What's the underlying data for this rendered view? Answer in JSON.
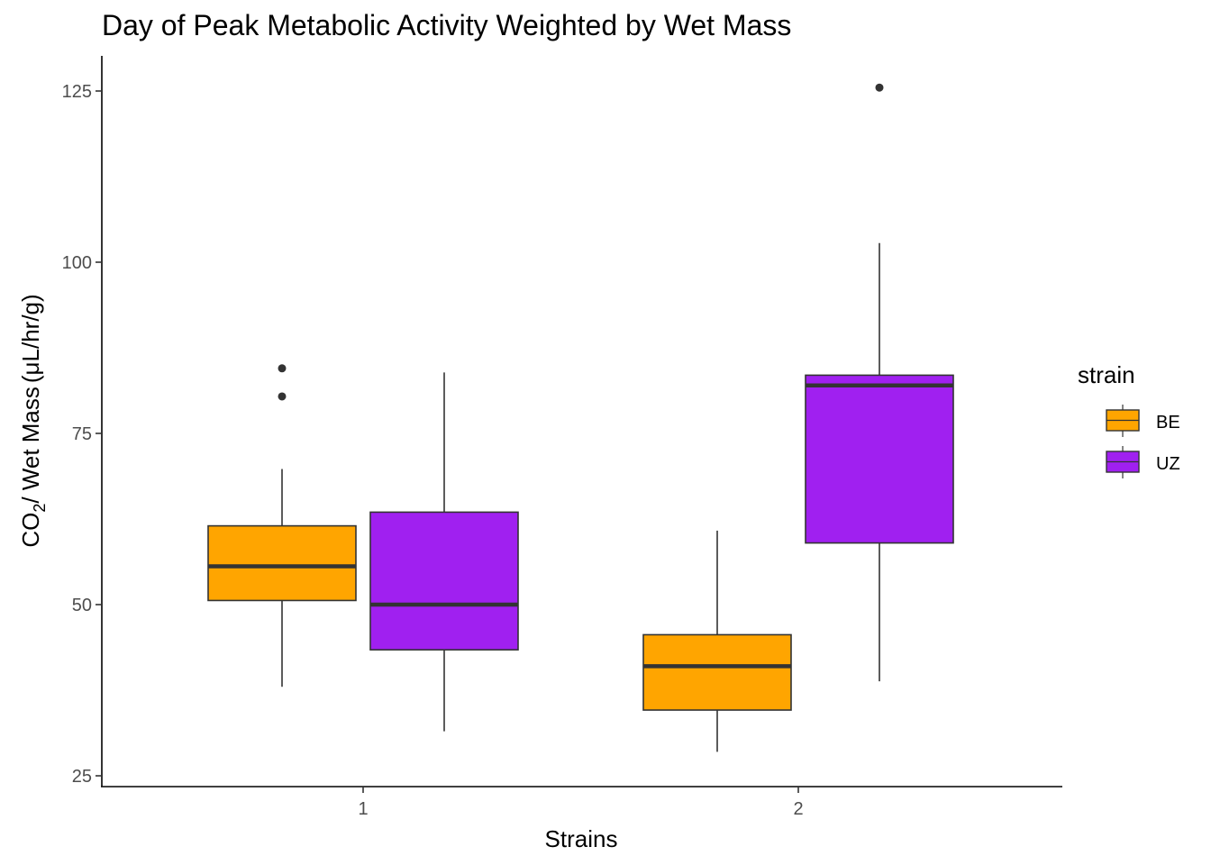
{
  "chart_data": {
    "type": "boxplot",
    "title": "Day of Peak Metabolic Activity Weighted by Wet Mass",
    "xlabel": "Strains",
    "ylabel": {
      "prefix": "CO",
      "subscript": "2",
      "suffix": "/ Wet Mass",
      "units": "(μL/hr/g)"
    },
    "categories": [
      "1",
      "2"
    ],
    "ylim": [
      24,
      130
    ],
    "yticks": [
      25,
      50,
      75,
      100,
      125
    ],
    "grid": false,
    "legend": {
      "title": "strain",
      "position": "right"
    },
    "series": [
      {
        "name": "BE",
        "color": "#FFA500",
        "boxes": [
          {
            "category": "1",
            "whisker_low": 38,
            "q1": 50.6,
            "median": 55.6,
            "q3": 61.5,
            "whisker_high": 69.8,
            "outliers": [
              80.4,
              84.5
            ]
          },
          {
            "category": "2",
            "whisker_low": 28.5,
            "q1": 34.6,
            "median": 41,
            "q3": 45.6,
            "whisker_high": 60.8,
            "outliers": []
          }
        ]
      },
      {
        "name": "UZ",
        "color": "#A020F0",
        "boxes": [
          {
            "category": "1",
            "whisker_low": 31.5,
            "q1": 43.4,
            "median": 50,
            "q3": 63.5,
            "whisker_high": 83.9,
            "outliers": []
          },
          {
            "category": "2",
            "whisker_low": 38.8,
            "q1": 59,
            "median": 82,
            "q3": 83.5,
            "whisker_high": 102.8,
            "outliers": [
              125.5
            ]
          }
        ]
      }
    ]
  }
}
